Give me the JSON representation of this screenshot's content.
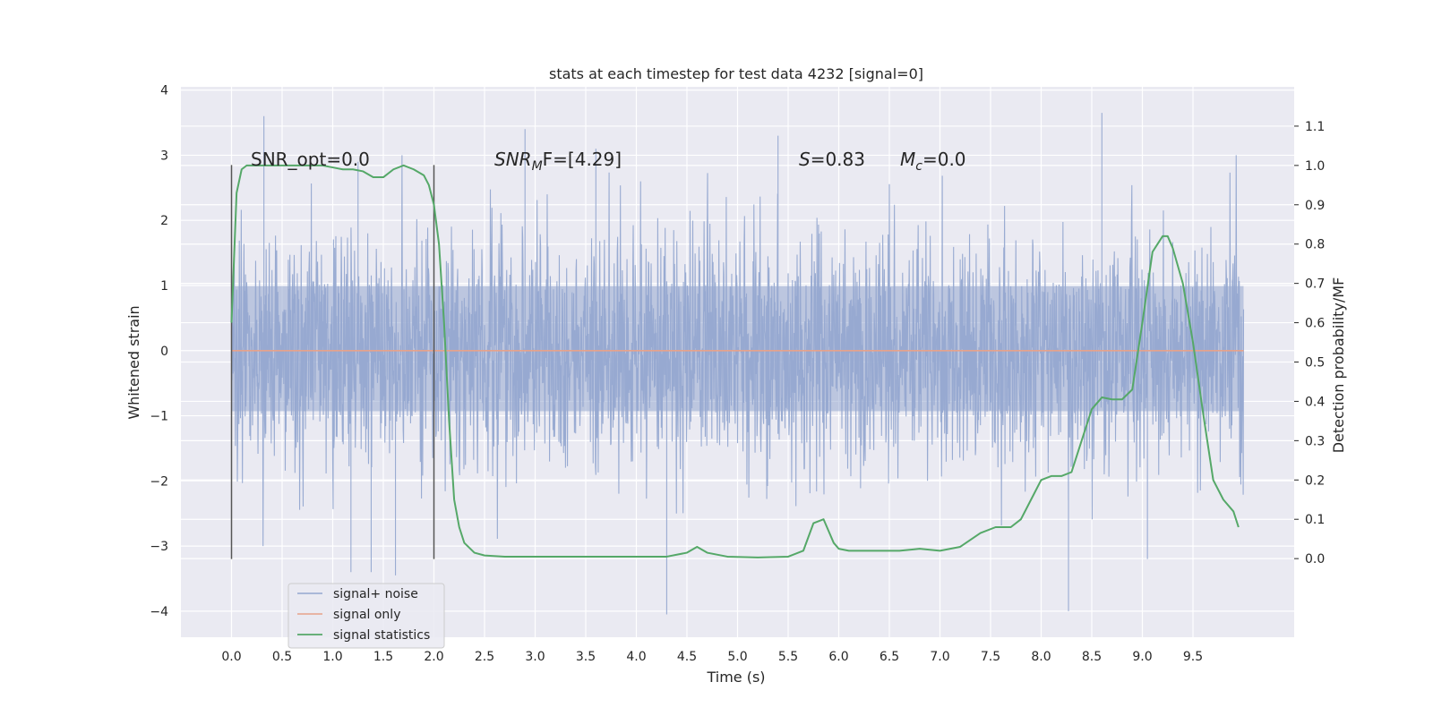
{
  "chart_data": {
    "type": "line",
    "title": "stats at each timestep for test data 4232 [signal=0]",
    "xlabel": "Time (s)",
    "ylabel": "Whitened strain",
    "y2label": "Detection probability/MF",
    "xlim": [
      -0.5,
      10.5
    ],
    "ylim": [
      -4.4,
      4.05
    ],
    "y2lim": [
      -0.2,
      1.2
    ],
    "x_ticks": [
      0.0,
      0.5,
      1.0,
      1.5,
      2.0,
      2.5,
      3.0,
      3.5,
      4.0,
      4.5,
      5.0,
      5.5,
      6.0,
      6.5,
      7.0,
      7.5,
      8.0,
      8.5,
      9.0,
      9.5
    ],
    "x_tick_labels": [
      "0.0",
      "0.5",
      "1.0",
      "1.5",
      "2.0",
      "2.5",
      "3.0",
      "3.5",
      "4.0",
      "4.5",
      "5.0",
      "5.5",
      "6.0",
      "6.5",
      "7.0",
      "7.5",
      "8.0",
      "8.5",
      "9.0",
      "9.5"
    ],
    "y_ticks": [
      -4,
      -3,
      -2,
      -1,
      0,
      1,
      2,
      3,
      4
    ],
    "y_tick_labels": [
      "−4",
      "−3",
      "−2",
      "−1",
      "0",
      "1",
      "2",
      "3",
      "4"
    ],
    "y2_ticks": [
      0.0,
      0.1,
      0.2,
      0.3,
      0.4,
      0.5,
      0.6,
      0.7,
      0.8,
      0.9,
      1.0,
      1.1
    ],
    "y2_tick_labels": [
      "0.0",
      "0.1",
      "0.2",
      "0.3",
      "0.4",
      "0.5",
      "0.6",
      "0.7",
      "0.8",
      "0.9",
      "1.0",
      "1.1"
    ],
    "grid": true,
    "legend_position": "lower-left",
    "annotations": {
      "snr_opt": "SNR_opt=0.0",
      "snr_mf_base": "SNR",
      "snr_mf_sub": "M",
      "snr_mf_rest": "F=[4.29]",
      "s_base": "S",
      "s_rest": "=0.83",
      "mc_base": "M",
      "mc_sub": "c",
      "mc_rest": "=0.0"
    },
    "vlines": [
      0.0,
      2.0
    ],
    "vline_range": [
      -3.2,
      2.85
    ],
    "series": [
      {
        "name": "signal+ noise",
        "color": "#95a8d0",
        "kind": "noise",
        "x_range": [
          0.0,
          10.0
        ],
        "core_band": [
          -1.5,
          1.6
        ],
        "spike_extremes": [
          [
            0.32,
            3.6
          ],
          [
            1.18,
            -3.4
          ],
          [
            1.25,
            2.9
          ],
          [
            1.38,
            -3.4
          ],
          [
            1.62,
            -3.45
          ],
          [
            2.9,
            3.4
          ],
          [
            3.6,
            3.1
          ],
          [
            4.3,
            -4.05
          ],
          [
            5.4,
            3.3
          ],
          [
            8.27,
            -4.0
          ],
          [
            8.6,
            3.65
          ],
          [
            9.05,
            -3.2
          ]
        ]
      },
      {
        "name": "signal only",
        "color": "#e7a28a",
        "x": [
          0.0,
          10.0
        ],
        "y": [
          0.0,
          0.0
        ]
      },
      {
        "name": "signal statistics",
        "color": "#55a868",
        "axis": "right",
        "x": [
          0.0,
          0.05,
          0.1,
          0.15,
          0.2,
          0.3,
          0.5,
          0.7,
          0.9,
          1.0,
          1.1,
          1.2,
          1.3,
          1.4,
          1.5,
          1.6,
          1.7,
          1.8,
          1.9,
          1.95,
          2.0,
          2.05,
          2.1,
          2.15,
          2.2,
          2.25,
          2.3,
          2.4,
          2.5,
          2.7,
          3.0,
          3.3,
          3.6,
          4.0,
          4.3,
          4.5,
          4.6,
          4.7,
          4.9,
          5.2,
          5.5,
          5.65,
          5.75,
          5.85,
          5.9,
          5.95,
          6.0,
          6.1,
          6.3,
          6.6,
          6.8,
          7.0,
          7.2,
          7.4,
          7.55,
          7.7,
          7.8,
          7.9,
          8.0,
          8.1,
          8.2,
          8.3,
          8.4,
          8.5,
          8.6,
          8.7,
          8.8,
          8.9,
          9.0,
          9.1,
          9.15,
          9.2,
          9.25,
          9.3,
          9.4,
          9.5,
          9.6,
          9.7,
          9.8,
          9.9,
          9.95
        ],
        "y": [
          0.6,
          0.93,
          0.99,
          1.0,
          1.0,
          1.0,
          1.0,
          1.0,
          1.0,
          0.995,
          0.99,
          0.99,
          0.985,
          0.97,
          0.97,
          0.99,
          1.0,
          0.99,
          0.975,
          0.95,
          0.9,
          0.8,
          0.6,
          0.35,
          0.15,
          0.08,
          0.04,
          0.015,
          0.008,
          0.005,
          0.005,
          0.005,
          0.005,
          0.005,
          0.005,
          0.015,
          0.03,
          0.015,
          0.005,
          0.003,
          0.005,
          0.02,
          0.09,
          0.1,
          0.07,
          0.04,
          0.025,
          0.02,
          0.02,
          0.02,
          0.025,
          0.02,
          0.03,
          0.065,
          0.08,
          0.08,
          0.1,
          0.15,
          0.2,
          0.21,
          0.21,
          0.22,
          0.3,
          0.38,
          0.41,
          0.405,
          0.405,
          0.43,
          0.6,
          0.78,
          0.8,
          0.82,
          0.82,
          0.79,
          0.7,
          0.55,
          0.37,
          0.2,
          0.15,
          0.12,
          0.08
        ]
      }
    ]
  }
}
